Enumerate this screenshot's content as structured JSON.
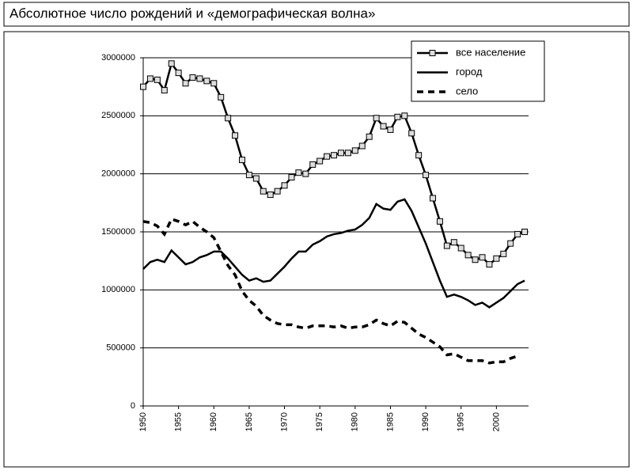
{
  "chart_data": {
    "type": "line",
    "title": "Абсолютное число рождений и «демографическая волна»",
    "x": [
      1950,
      1951,
      1952,
      1953,
      1954,
      1955,
      1956,
      1957,
      1958,
      1959,
      1960,
      1961,
      1962,
      1963,
      1964,
      1965,
      1966,
      1967,
      1968,
      1969,
      1970,
      1971,
      1972,
      1973,
      1974,
      1975,
      1976,
      1977,
      1978,
      1979,
      1980,
      1981,
      1982,
      1983,
      1984,
      1985,
      1986,
      1987,
      1988,
      1989,
      1990,
      1991,
      1992,
      1993,
      1994,
      1995,
      1996,
      1997,
      1998,
      1999,
      2000,
      2001,
      2002,
      2003,
      2004
    ],
    "series": [
      {
        "name": "все население",
        "color": "#000000",
        "style": "line-square",
        "values": [
          2750000,
          2820000,
          2810000,
          2720000,
          2950000,
          2870000,
          2780000,
          2830000,
          2820000,
          2800000,
          2780000,
          2660000,
          2480000,
          2330000,
          2120000,
          1990000,
          1960000,
          1850000,
          1820000,
          1850000,
          1900000,
          1970000,
          2010000,
          2000000,
          2080000,
          2110000,
          2150000,
          2160000,
          2180000,
          2180000,
          2200000,
          2240000,
          2320000,
          2480000,
          2410000,
          2380000,
          2490000,
          2500000,
          2350000,
          2160000,
          1990000,
          1790000,
          1590000,
          1380000,
          1410000,
          1360000,
          1300000,
          1260000,
          1280000,
          1220000,
          1270000,
          1310000,
          1400000,
          1480000,
          1500000
        ]
      },
      {
        "name": "город",
        "color": "#000000",
        "style": "solid",
        "values": [
          1180000,
          1240000,
          1260000,
          1240000,
          1340000,
          1280000,
          1220000,
          1240000,
          1280000,
          1300000,
          1330000,
          1330000,
          1270000,
          1200000,
          1130000,
          1080000,
          1100000,
          1070000,
          1080000,
          1140000,
          1200000,
          1270000,
          1330000,
          1330000,
          1390000,
          1420000,
          1460000,
          1480000,
          1490000,
          1510000,
          1520000,
          1560000,
          1620000,
          1740000,
          1700000,
          1690000,
          1760000,
          1780000,
          1680000,
          1540000,
          1400000,
          1240000,
          1080000,
          940000,
          960000,
          940000,
          910000,
          870000,
          890000,
          850000,
          890000,
          930000,
          990000,
          1050000,
          1080000
        ]
      },
      {
        "name": "село",
        "color": "#000000",
        "style": "dashed",
        "values": [
          1590000,
          1580000,
          1550000,
          1480000,
          1610000,
          1590000,
          1560000,
          1590000,
          1540000,
          1500000,
          1450000,
          1330000,
          1210000,
          1130000,
          990000,
          910000,
          860000,
          780000,
          740000,
          710000,
          700000,
          700000,
          680000,
          670000,
          690000,
          690000,
          690000,
          680000,
          690000,
          670000,
          680000,
          680000,
          700000,
          740000,
          710000,
          690000,
          730000,
          720000,
          670000,
          620000,
          590000,
          550000,
          510000,
          440000,
          450000,
          420000,
          390000,
          390000,
          390000,
          370000,
          380000,
          380000,
          410000,
          430000,
          null
        ]
      }
    ],
    "xlim": [
      1950,
      2005
    ],
    "xticks": [
      1950,
      1955,
      1960,
      1965,
      1970,
      1975,
      1980,
      1985,
      1990,
      1995,
      2000
    ],
    "ylim": [
      0,
      3000000
    ],
    "yticks": [
      0,
      500000,
      1000000,
      1500000,
      2000000,
      2500000,
      3000000
    ],
    "grid": true,
    "legend": "upper right"
  }
}
